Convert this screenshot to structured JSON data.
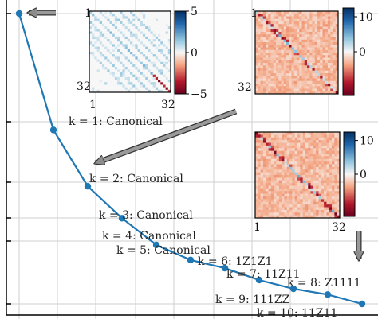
{
  "chart_data": {
    "type": "line",
    "title": "",
    "xlabel": "",
    "ylabel": "",
    "grid": true,
    "x": [
      0,
      1,
      2,
      3,
      4,
      5,
      6,
      7,
      8,
      9,
      10
    ],
    "y": [
      100,
      59.9,
      40.5,
      29.5,
      20.3,
      15.1,
      12.3,
      8.2,
      5.2,
      3.2,
      0
    ],
    "point_labels": [
      "",
      "k = 1: Canonical",
      "k = 2: Canonical",
      "k = 3: Canonical",
      "k = 4: Canonical",
      "k = 5: Canonical",
      "k = 6: 1Z1Z1",
      "k = 7: 11Z11",
      "k = 8: Z1111",
      "k = 9: 111ZZ",
      "k = 10: 11Z11"
    ],
    "insets": [
      {
        "name": "matrix-inset-1",
        "size": 32,
        "axis_labels": [
          "1",
          "32",
          "1",
          "32"
        ],
        "colorbar_ticks": [
          "5",
          "0",
          "−5"
        ],
        "colorbar_range": [
          -5,
          5
        ],
        "pattern": "sparse"
      },
      {
        "name": "matrix-inset-2",
        "size": 32,
        "axis_labels": [
          "1",
          "32",
          "",
          ""
        ],
        "colorbar_ticks": [
          "10",
          "0"
        ],
        "colorbar_range": [
          -10,
          10
        ],
        "pattern": "dense"
      },
      {
        "name": "matrix-inset-3",
        "size": 32,
        "axis_labels": [
          "",
          "",
          "1",
          "32"
        ],
        "colorbar_ticks": [
          "10",
          "0"
        ],
        "colorbar_range": [
          -10,
          10
        ],
        "pattern": "dense"
      }
    ]
  }
}
